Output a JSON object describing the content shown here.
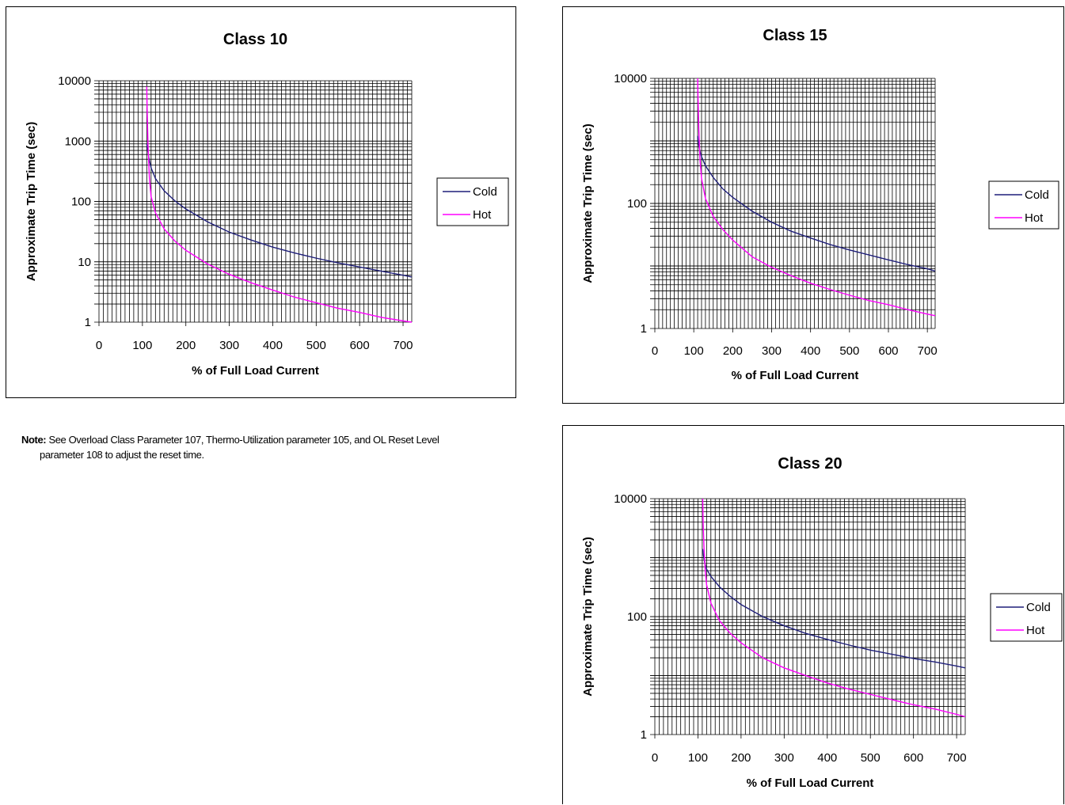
{
  "note": {
    "label": "Note:",
    "line1": "See Overload Class Parameter 107, Thermo-Utilization parameter 105, and OL Reset Level",
    "line2": "parameter 108 to adjust the reset time."
  },
  "chart_data": [
    {
      "id": "class10",
      "type": "line",
      "title": "Class 10",
      "xlabel": "% of Full Load Current",
      "ylabel": "Approximate Trip Time (sec)",
      "xlim": [
        0,
        720
      ],
      "ylim": [
        1,
        10000
      ],
      "yscale": "log",
      "grid": true,
      "legend_position": "right",
      "x_ticks": [
        0,
        100,
        200,
        300,
        400,
        500,
        600,
        700
      ],
      "y_ticks": [
        {
          "value": 1,
          "label": "1"
        },
        {
          "value": 10,
          "label": "10"
        },
        {
          "value": 100,
          "label": "100"
        },
        {
          "value": 1000,
          "label": "1000"
        },
        {
          "value": 10000,
          "label": "10000"
        }
      ],
      "series": [
        {
          "name": "Cold",
          "color": "#1f1f7a",
          "x": [
            110,
            115,
            120,
            130,
            150,
            175,
            200,
            250,
            300,
            350,
            400,
            450,
            500,
            550,
            600,
            650,
            700,
            720
          ],
          "y": [
            900,
            520,
            360,
            240,
            150,
            102,
            75,
            46,
            31,
            23,
            17.5,
            14,
            11.5,
            9.6,
            8.2,
            7.0,
            6.0,
            5.6
          ]
        },
        {
          "name": "Hot",
          "color": "#ff00ff",
          "x": [
            110,
            111,
            113,
            116,
            120,
            130,
            150,
            175,
            200,
            250,
            300,
            350,
            400,
            450,
            500,
            550,
            600,
            650,
            700,
            720
          ],
          "y": [
            8000,
            3000,
            800,
            250,
            120,
            65,
            35,
            22,
            15.5,
            9.2,
            6.2,
            4.5,
            3.4,
            2.6,
            2.1,
            1.7,
            1.45,
            1.2,
            1.05,
            1.0
          ]
        }
      ]
    },
    {
      "id": "class15",
      "type": "line",
      "title": "Class 15",
      "xlabel": "% of Full Load Current",
      "ylabel": "Approximate Trip Time (sec)",
      "xlim": [
        0,
        720
      ],
      "ylim": [
        1,
        10000
      ],
      "yscale": "log",
      "grid": true,
      "legend_position": "right",
      "x_ticks": [
        0,
        100,
        200,
        300,
        400,
        500,
        600,
        700
      ],
      "y_ticks": [
        {
          "value": 1,
          "label": "1"
        },
        {
          "value": 100,
          "label": "100"
        },
        {
          "value": 10000,
          "label": "10000"
        }
      ],
      "series": [
        {
          "name": "Cold",
          "color": "#1f1f7a",
          "x": [
            110,
            112,
            115,
            120,
            130,
            150,
            175,
            200,
            250,
            300,
            350,
            400,
            450,
            500,
            550,
            600,
            650,
            700,
            720
          ],
          "y": [
            1200,
            900,
            720,
            560,
            400,
            260,
            170,
            125,
            75,
            50,
            36,
            28,
            22,
            18,
            15,
            12.5,
            10.5,
            9,
            8.3
          ]
        },
        {
          "name": "Hot",
          "color": "#ff00ff",
          "x": [
            110,
            111,
            113,
            116,
            120,
            130,
            150,
            175,
            200,
            250,
            300,
            350,
            400,
            450,
            500,
            550,
            600,
            650,
            700,
            720
          ],
          "y": [
            10000,
            5000,
            1500,
            500,
            250,
            120,
            62,
            38,
            26,
            14,
            9.5,
            7,
            5.3,
            4.2,
            3.4,
            2.8,
            2.4,
            2.0,
            1.7,
            1.6
          ]
        }
      ]
    },
    {
      "id": "class20",
      "type": "line",
      "title": "Class 20",
      "xlabel": "% of Full Load Current",
      "ylabel": "Approximate Trip Time (sec)",
      "xlim": [
        0,
        720
      ],
      "ylim": [
        1,
        10000
      ],
      "yscale": "log",
      "grid": true,
      "legend_position": "right",
      "x_ticks": [
        0,
        100,
        200,
        300,
        400,
        500,
        600,
        700
      ],
      "y_ticks": [
        {
          "value": 1,
          "label": "1"
        },
        {
          "value": 100,
          "label": "100"
        },
        {
          "value": 10000,
          "label": "10000"
        }
      ],
      "series": [
        {
          "name": "Cold",
          "color": "#1f1f7a",
          "x": [
            111,
            113,
            116,
            120,
            130,
            150,
            175,
            200,
            250,
            300,
            350,
            400,
            450,
            500,
            550,
            600,
            650,
            700,
            720
          ],
          "y": [
            1400,
            1050,
            800,
            640,
            480,
            320,
            220,
            160,
            100,
            70,
            52,
            41,
            33,
            27,
            23,
            19.5,
            17,
            14.5,
            13.5
          ]
        },
        {
          "name": "Hot",
          "color": "#ff00ff",
          "x": [
            111,
            112,
            114,
            117,
            120,
            130,
            150,
            175,
            200,
            250,
            300,
            350,
            400,
            450,
            500,
            550,
            600,
            650,
            700,
            720
          ],
          "y": [
            10000,
            4000,
            1500,
            600,
            350,
            170,
            85,
            52,
            36,
            20,
            13.5,
            10,
            7.5,
            5.9,
            4.8,
            3.9,
            3.2,
            2.7,
            2.2,
            2.0
          ]
        }
      ]
    }
  ]
}
